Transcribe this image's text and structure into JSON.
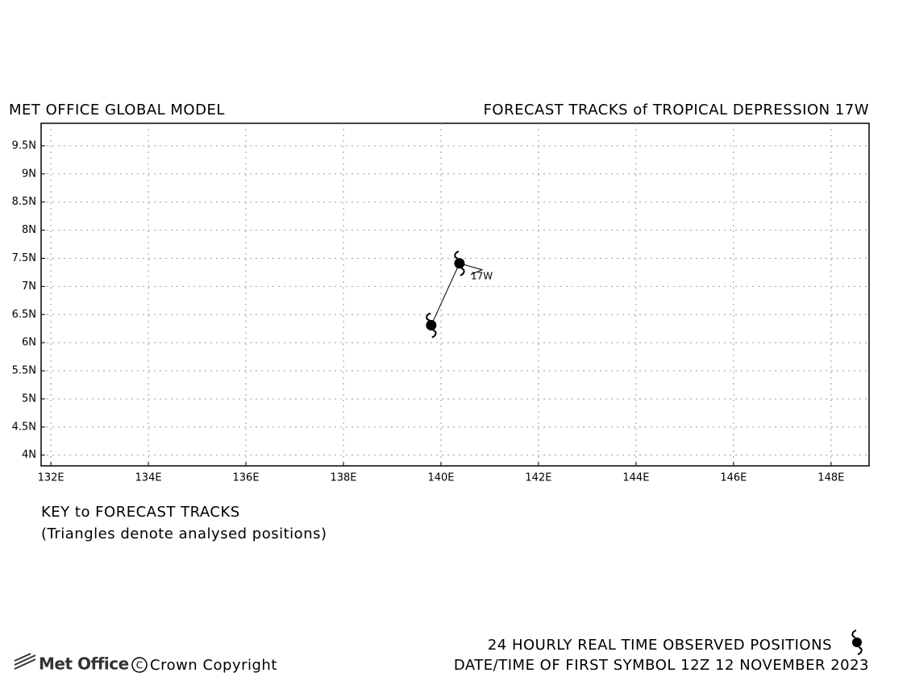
{
  "chart_data": {
    "type": "track",
    "title_left": "MET OFFICE GLOBAL MODEL",
    "title_right": "FORECAST TRACKS of TROPICAL DEPRESSION 17W",
    "x": [
      140.38,
      139.8
    ],
    "series": [
      {
        "name": "17W",
        "color": "#000000",
        "values": [
          7.41,
          6.31
        ]
      }
    ],
    "xlim": [
      131.8,
      148.78
    ],
    "ylim": [
      3.81,
      9.9
    ],
    "xticks": [
      {
        "value": 132,
        "label": "132E"
      },
      {
        "value": 134,
        "label": "134E"
      },
      {
        "value": 136,
        "label": "136E"
      },
      {
        "value": 138,
        "label": "138E"
      },
      {
        "value": 140,
        "label": "140E"
      },
      {
        "value": 142,
        "label": "142E"
      },
      {
        "value": 144,
        "label": "144E"
      },
      {
        "value": 146,
        "label": "146E"
      },
      {
        "value": 148,
        "label": "148E"
      }
    ],
    "yticks": [
      {
        "value": 4,
        "label": "4N"
      },
      {
        "value": 4.5,
        "label": "4.5N"
      },
      {
        "value": 5,
        "label": "5N"
      },
      {
        "value": 5.5,
        "label": "5.5N"
      },
      {
        "value": 6,
        "label": "6N"
      },
      {
        "value": 6.5,
        "label": "6.5N"
      },
      {
        "value": 7,
        "label": "7N"
      },
      {
        "value": 7.5,
        "label": "7.5N"
      },
      {
        "value": 8,
        "label": "8N"
      },
      {
        "value": 8.5,
        "label": "8.5N"
      },
      {
        "value": 9,
        "label": "9N"
      },
      {
        "value": 9.5,
        "label": "9.5N"
      }
    ],
    "grid": true,
    "key_title": "KEY to FORECAST TRACKS",
    "key_note": "(Triangles denote analysed positions)",
    "footer_legend": "24 HOURLY REAL TIME OBSERVED POSITIONS",
    "footer_date": "DATE/TIME OF FIRST SYMBOL 12Z 12 NOVEMBER 2023",
    "logo": "Met Office",
    "copyright": "Crown Copyright"
  }
}
